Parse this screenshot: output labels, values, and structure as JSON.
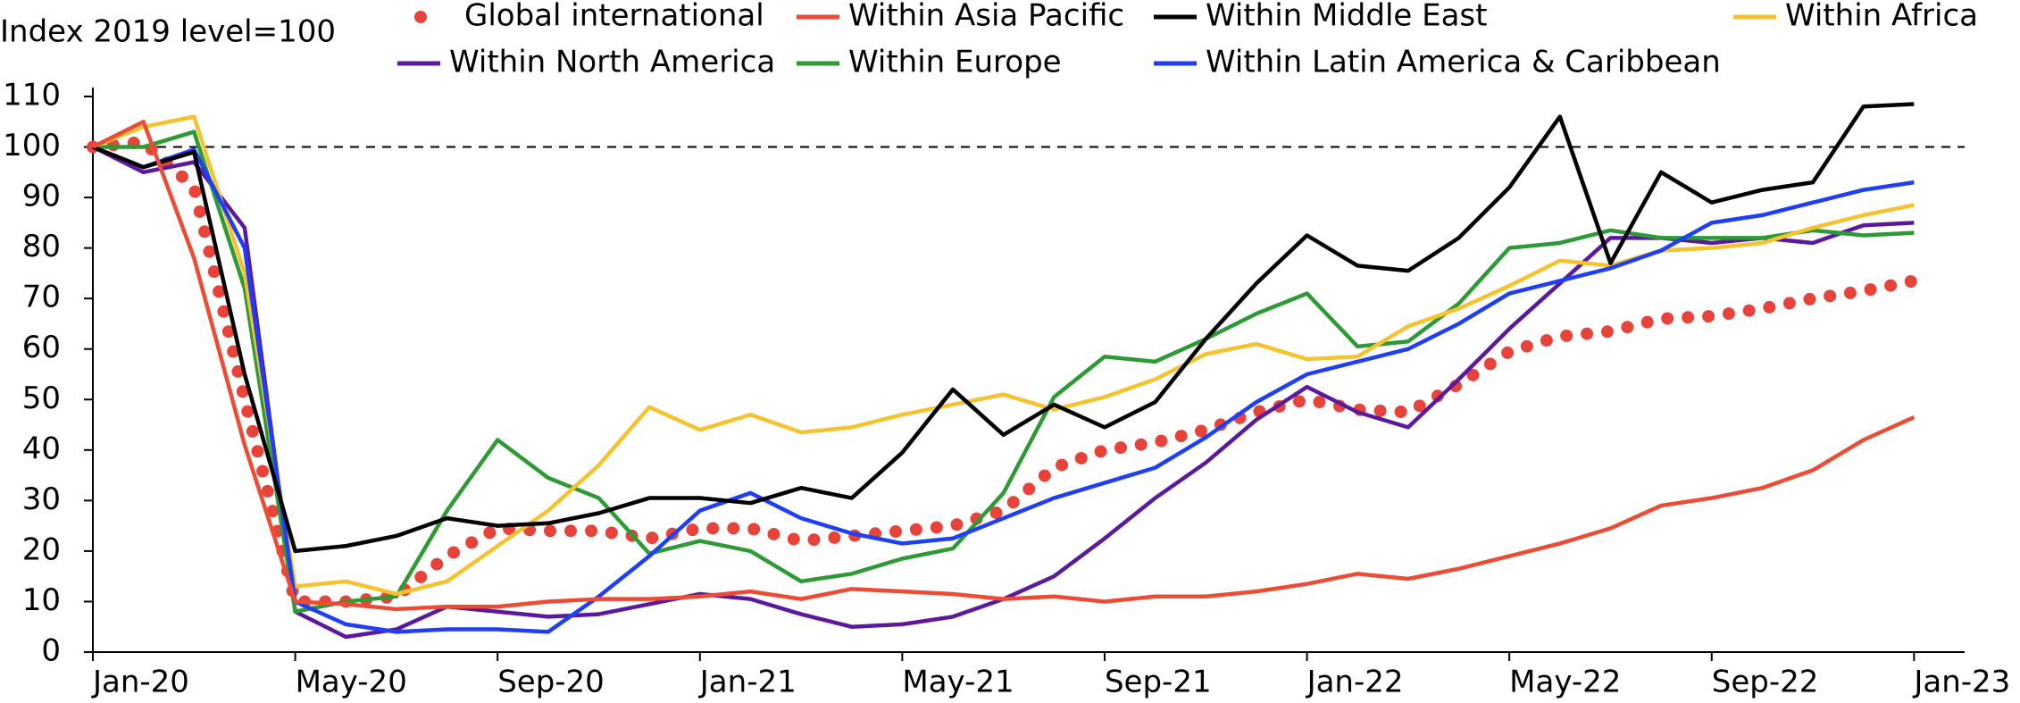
{
  "chart_data": {
    "type": "line",
    "title": "Index 2019 level=100",
    "x": [
      0,
      1,
      2,
      3,
      4,
      5,
      6,
      7,
      8,
      9,
      10,
      11,
      12,
      13,
      14,
      15,
      16,
      17,
      18,
      19,
      20,
      21,
      22,
      23,
      24,
      25,
      26,
      27,
      28,
      29,
      30,
      31,
      32,
      33,
      34,
      35,
      36
    ],
    "xlim": [
      0,
      37
    ],
    "xticks": [
      {
        "value": 0,
        "label": "Jan-20"
      },
      {
        "value": 4,
        "label": "May-20"
      },
      {
        "value": 8,
        "label": "Sep-20"
      },
      {
        "value": 12,
        "label": "Jan-21"
      },
      {
        "value": 16,
        "label": "May-21"
      },
      {
        "value": 20,
        "label": "Sep-21"
      },
      {
        "value": 24,
        "label": "Jan-22"
      },
      {
        "value": 28,
        "label": "May-22"
      },
      {
        "value": 32,
        "label": "Sep-22"
      },
      {
        "value": 36,
        "label": "Jan-23"
      }
    ],
    "ylim": [
      0,
      110
    ],
    "yticks": [
      0,
      10,
      20,
      30,
      40,
      50,
      60,
      70,
      80,
      90,
      100,
      110
    ],
    "reference_line": 100,
    "legend": "top",
    "series": [
      {
        "name": "Global international",
        "color": "#e8433a",
        "style": "dotted",
        "values": [
          100,
          101,
          92,
          50,
          10,
          10,
          11,
          19,
          24.5,
          24,
          24,
          22.5,
          24.5,
          24.5,
          22,
          23,
          24,
          25,
          28,
          36.5,
          40,
          41.5,
          44,
          47.5,
          50,
          48,
          47.5,
          53,
          59.5,
          62.5,
          63.5,
          66,
          66.5,
          68,
          70,
          71.5,
          73.5
        ]
      },
      {
        "name": "Within Asia Pacific",
        "color": "#ee4b35",
        "style": "solid",
        "values": [
          100,
          105,
          78,
          41,
          10,
          9.5,
          8.5,
          9,
          9,
          10,
          10.5,
          10.5,
          11,
          12,
          10.5,
          12.5,
          12,
          11.5,
          10.5,
          11,
          10,
          11,
          11,
          12,
          13.5,
          15.5,
          14.5,
          16.5,
          19,
          21.5,
          24.5,
          29,
          30.5,
          32.5,
          36,
          42,
          46.5
        ]
      },
      {
        "name": "Within Middle East",
        "color": "#000000",
        "style": "solid",
        "values": [
          100,
          96,
          99,
          55,
          20,
          21,
          23,
          26.5,
          25,
          25.5,
          27.5,
          30.5,
          30.5,
          29.5,
          32.5,
          30.5,
          39.5,
          52,
          43,
          49,
          44.5,
          49.5,
          62,
          73,
          82.5,
          76.5,
          75.5,
          82,
          92,
          106,
          77,
          95,
          89,
          91.5,
          93,
          108,
          108.5
        ]
      },
      {
        "name": "Within Africa",
        "color": "#f5c330",
        "style": "solid",
        "values": [
          100,
          104,
          106,
          75,
          13,
          14,
          11.5,
          14,
          21,
          28,
          37,
          48.5,
          44,
          47,
          43.5,
          44.5,
          47,
          49,
          51,
          48,
          50.5,
          54,
          59,
          61,
          58,
          58.5,
          64.5,
          68,
          72.5,
          77.5,
          76.5,
          79.5,
          80,
          81,
          84,
          86.5,
          88.5
        ]
      },
      {
        "name": "Within North America",
        "color": "#5b1a9e",
        "style": "solid",
        "values": [
          100,
          95,
          97,
          84,
          8,
          3,
          4.5,
          9,
          8,
          7,
          7.5,
          9.5,
          11.5,
          10.5,
          7.5,
          5,
          5.5,
          7,
          10.5,
          15,
          22.5,
          30.5,
          37.5,
          46,
          52.5,
          47.5,
          44.5,
          54,
          64,
          73,
          82,
          82,
          81,
          82,
          81,
          84.5,
          85
        ]
      },
      {
        "name": "Within Europe",
        "color": "#2e9a36",
        "style": "solid",
        "values": [
          100,
          100,
          103,
          72,
          8,
          10,
          11,
          28,
          42,
          34.5,
          30.5,
          19.5,
          22,
          20,
          14,
          15.5,
          18.5,
          20.5,
          31.5,
          50.5,
          58.5,
          57.5,
          62,
          67,
          71,
          60.5,
          61.5,
          69,
          80,
          81,
          83.5,
          82,
          82,
          82,
          83.5,
          82.5,
          83
        ]
      },
      {
        "name": "Within Latin America & Caribbean",
        "color": "#1f3ff5",
        "style": "solid",
        "values": [
          100,
          96,
          99.5,
          80,
          10,
          5.5,
          4,
          4.5,
          4.5,
          4,
          11,
          19,
          28,
          31.5,
          26.5,
          23.5,
          21.5,
          22.5,
          26.5,
          30.5,
          33.5,
          36.5,
          42.5,
          49.5,
          55,
          57.5,
          60,
          65,
          71,
          73.5,
          76,
          79.5,
          85,
          86.5,
          89,
          91.5,
          93
        ]
      }
    ]
  }
}
